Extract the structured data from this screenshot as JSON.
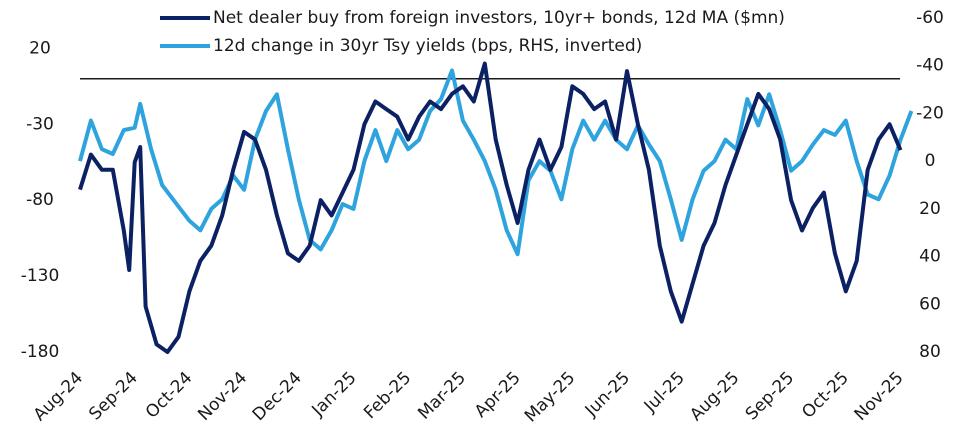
{
  "chart_data": {
    "type": "line",
    "xlim": [
      0,
      15.3
    ],
    "xticks": [
      {
        "value": 0,
        "label": "Aug-24"
      },
      {
        "value": 1,
        "label": "Sep-24"
      },
      {
        "value": 2,
        "label": "Oct-24"
      },
      {
        "value": 3,
        "label": "Nov-24"
      },
      {
        "value": 4,
        "label": "Dec-24"
      },
      {
        "value": 5,
        "label": "Jan-25"
      },
      {
        "value": 6,
        "label": "Feb-25"
      },
      {
        "value": 7,
        "label": "Mar-25"
      },
      {
        "value": 8,
        "label": "Apr-25"
      },
      {
        "value": 9,
        "label": "May-25"
      },
      {
        "value": 10,
        "label": "Jun-25"
      },
      {
        "value": 11,
        "label": "Jul-25"
      },
      {
        "value": 12,
        "label": "Aug-25"
      },
      {
        "value": 13,
        "label": "Sep-25"
      },
      {
        "value": 14,
        "label": "Oct-25"
      },
      {
        "value": 15,
        "label": "Nov-25"
      }
    ],
    "ylim": [
      -180,
      40
    ],
    "yticks": [
      20,
      -30,
      -80,
      -130,
      -180
    ],
    "y2lim": [
      -60,
      80
    ],
    "y2ticks": [
      -60,
      -40,
      -20,
      0,
      20,
      40,
      60,
      80
    ],
    "y2_inverted": true,
    "reference_line": 0,
    "series": [
      {
        "name": "Net dealer buy from foreign investors, 10yr+ bonds, 12d MA ($mn)",
        "color": "#0c2163",
        "x": [
          0,
          0.2,
          0.4,
          0.6,
          0.8,
          0.9,
          1.0,
          1.1,
          1.2,
          1.4,
          1.6,
          1.8,
          2.0,
          2.2,
          2.4,
          2.6,
          2.8,
          3.0,
          3.2,
          3.4,
          3.6,
          3.8,
          4.0,
          4.2,
          4.4,
          4.6,
          4.8,
          5.0,
          5.2,
          5.4,
          5.6,
          5.8,
          6.0,
          6.2,
          6.4,
          6.6,
          6.8,
          7.0,
          7.2,
          7.4,
          7.6,
          7.8,
          8.0,
          8.2,
          8.4,
          8.6,
          8.8,
          9.0,
          9.2,
          9.4,
          9.6,
          9.8,
          10.0,
          10.2,
          10.4,
          10.6,
          10.8,
          11.0,
          11.2,
          11.4,
          11.6,
          11.8,
          12.0,
          12.2,
          12.4,
          12.6,
          12.8,
          13.0,
          13.2,
          13.4,
          13.6,
          13.8,
          14.0,
          14.2,
          14.4,
          14.6,
          14.8,
          15.0
        ],
        "values": [
          -73,
          -50,
          -60,
          -60,
          -100,
          -126,
          -55,
          -45,
          -150,
          -175,
          -180,
          -170,
          -140,
          -120,
          -110,
          -90,
          -60,
          -35,
          -40,
          -60,
          -90,
          -115,
          -120,
          -110,
          -80,
          -90,
          -75,
          -60,
          -30,
          -15,
          -20,
          -25,
          -40,
          -25,
          -15,
          -20,
          -10,
          -5,
          -15,
          10,
          -40,
          -70,
          -95,
          -60,
          -40,
          -60,
          -45,
          -5,
          -10,
          -20,
          -15,
          -40,
          5,
          -30,
          -60,
          -110,
          -140,
          -160,
          -135,
          -110,
          -95,
          -70,
          -50,
          -30,
          -10,
          -20,
          -40,
          -80,
          -100,
          -85,
          -75,
          -115,
          -140,
          -120,
          -60,
          -40,
          -30,
          -47
        ]
      },
      {
        "name": "12d change in 30yr Tsy yields (bps, RHS, inverted)",
        "color": "#2ea3dd",
        "axis": "y2",
        "x": [
          0,
          0.2,
          0.4,
          0.6,
          0.8,
          1.0,
          1.1,
          1.3,
          1.5,
          1.7,
          2.0,
          2.2,
          2.4,
          2.6,
          2.8,
          3.0,
          3.2,
          3.4,
          3.6,
          3.8,
          4.0,
          4.2,
          4.4,
          4.6,
          4.8,
          5.0,
          5.2,
          5.4,
          5.6,
          5.8,
          6.0,
          6.2,
          6.4,
          6.6,
          6.8,
          7.0,
          7.2,
          7.4,
          7.6,
          7.8,
          8.0,
          8.2,
          8.4,
          8.6,
          8.8,
          9.0,
          9.2,
          9.4,
          9.6,
          9.8,
          10.0,
          10.2,
          10.4,
          10.6,
          10.8,
          11.0,
          11.2,
          11.4,
          11.6,
          11.8,
          12.0,
          12.2,
          12.4,
          12.6,
          12.8,
          13.0,
          13.2,
          13.4,
          13.6,
          13.8,
          14.0,
          14.2,
          14.4,
          14.6,
          14.8,
          15.0,
          15.2
        ],
        "values": [
          0,
          -17,
          -5,
          -3,
          -13,
          -14,
          -24,
          -5,
          10,
          16,
          25,
          29,
          20,
          16,
          6,
          12,
          -9,
          -21,
          -28,
          -5,
          16,
          33,
          37,
          29,
          18,
          20,
          0,
          -13,
          0,
          -13,
          -5,
          -9,
          -21,
          -26,
          -38,
          -17,
          -9,
          0,
          12,
          29,
          39,
          8,
          0,
          4,
          16,
          -5,
          -17,
          -9,
          -17,
          -9,
          -5,
          -15,
          -7,
          0,
          16,
          33,
          16,
          4,
          0,
          -9,
          -5,
          -26,
          -15,
          -28,
          -13,
          4,
          0,
          -7,
          -13,
          -11,
          -17,
          0,
          14,
          16,
          6,
          -9,
          -21
        ]
      }
    ]
  }
}
